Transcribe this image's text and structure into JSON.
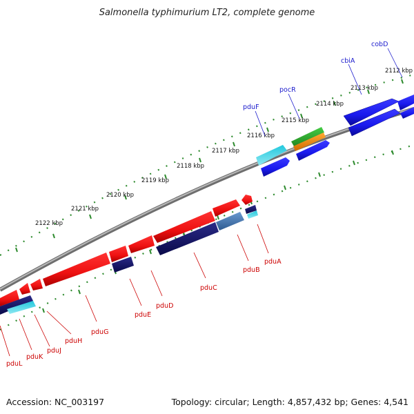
{
  "title": "Salmonella typhimurium LT2, complete genome",
  "footer": {
    "accession": "Accession: NC_003197",
    "summary": "Topology: circular; Length: 4,857,432 bp; Genes: 4,541"
  },
  "kbp_labels": [
    "2112 kbp",
    "2113 kbp",
    "2114 kbp",
    "2115 kbp",
    "2116 kbp",
    "2117 kbp",
    "2118 kbp",
    "2119 kbp",
    "2120 kbp",
    "2121 kbp",
    "2122 kbp"
  ],
  "forward_gene_labels": [
    "cobD",
    "cbiA",
    "pocR",
    "pduF"
  ],
  "reverse_gene_labels": [
    "pduA",
    "pduB",
    "pduC",
    "pduD",
    "pduE",
    "pduG",
    "pduH",
    "pduJ",
    "pduK",
    "pduL"
  ],
  "colors": {
    "backbone": "#888888",
    "tick": "#3a8a2a",
    "forward_label": "#1a1acc",
    "reverse_label": "#cc0000",
    "red_gene": "#ee1111",
    "blue_gene": "#1a1aee",
    "navy_gene": "#12126e",
    "cyan_gene": "#22c8dd",
    "steel_gene": "#4a7ab0",
    "green_gene": "#33aa33",
    "orange_gene": "#f08a10"
  }
}
